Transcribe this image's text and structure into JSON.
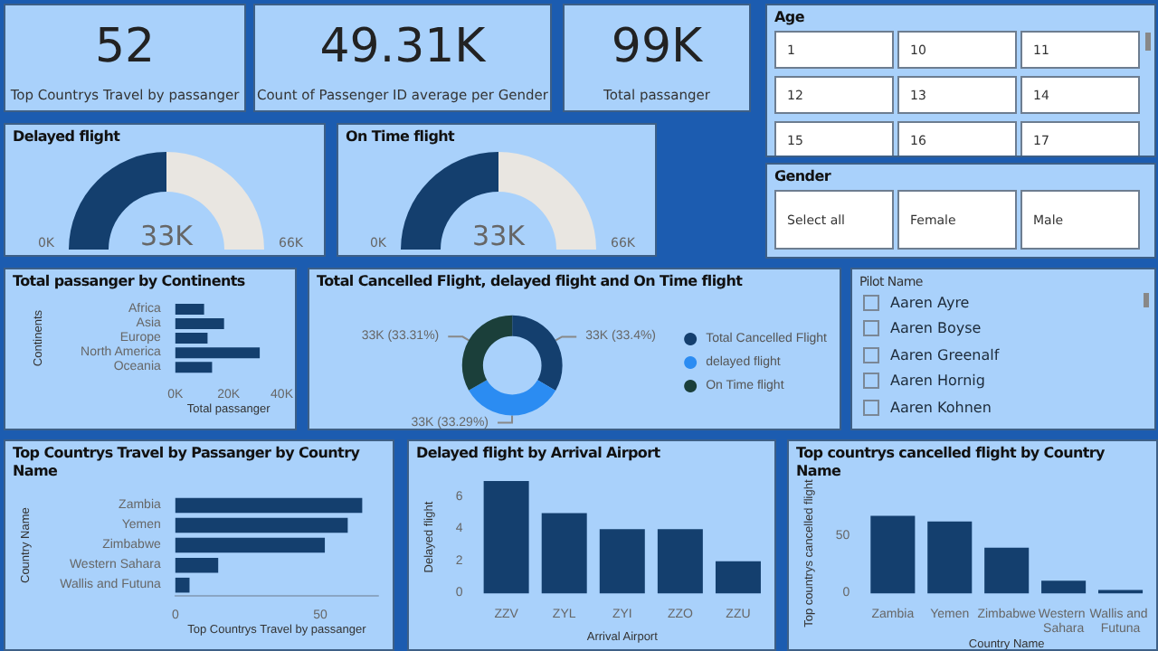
{
  "chart_data": [
    {
      "type": "other",
      "title": "Top Countrys Travel by passanger",
      "annotations": [
        "52"
      ]
    },
    {
      "type": "other",
      "title": "Count of Passenger ID average per Gender",
      "annotations": [
        "49.31K"
      ]
    },
    {
      "type": "other",
      "title": "Total passanger",
      "annotations": [
        "99K"
      ]
    },
    {
      "type": "other",
      "title": "Age",
      "annotations": [
        "1",
        "10",
        "11",
        "12",
        "13",
        "14",
        "15",
        "16",
        "17"
      ]
    },
    {
      "type": "donut",
      "title": "Delayed flight",
      "categories": [
        null,
        null
      ],
      "values": [
        50,
        50
      ],
      "colors": [
        "#143f6e",
        "#e9e6e1"
      ],
      "annotations": [
        "0K",
        "33K",
        "66K"
      ]
    },
    {
      "type": "donut",
      "title": "On Time flight",
      "categories": [
        null,
        null
      ],
      "values": [
        50,
        50
      ],
      "colors": [
        "#143f6e",
        "#e9e6e1"
      ],
      "annotations": [
        "0K",
        "33K",
        "66K"
      ]
    },
    {
      "type": "other",
      "title": "Gender",
      "annotations": [
        "Select all",
        "Female",
        "Male"
      ]
    },
    {
      "type": "bar",
      "orientation": "horizontal",
      "title": "Total passanger by Continents",
      "categories": [
        "Africa",
        "Asia",
        "Europe",
        "North America",
        "Oceania"
      ],
      "values": [
        10.8,
        18.3,
        12.1,
        31.7,
        13.8
      ],
      "color": "#143f6e",
      "xlim": [
        0,
        40
      ],
      "xticks": [
        {
          "value": 0,
          "label": "0K"
        },
        {
          "value": 20,
          "label": "20K"
        },
        {
          "value": 40,
          "label": "40K"
        }
      ],
      "xlabel": "Total passanger",
      "ylabel": "Continents"
    },
    {
      "type": "donut",
      "title": "Total Cancelled Flight, delayed flight and On Time flight",
      "categories": [
        "Total Cancelled Flight",
        "delayed flight",
        "On Time flight"
      ],
      "values": [
        33.4,
        33.29,
        33.31
      ],
      "colors": [
        "#143f6e",
        "#2b8cf2",
        "#1b3f3a"
      ],
      "value_labels": [
        "33K (33.4%)",
        "33K (33.29%)",
        "33K (33.31%)"
      ],
      "legend": "right"
    },
    {
      "type": "other",
      "title": "Pilot Name",
      "annotations": [
        "Aaren Ayre",
        "Aaren Boyse",
        "Aaren Greenalf",
        "Aaren Hornig",
        "Aaren Kohnen"
      ]
    },
    {
      "type": "bar",
      "orientation": "horizontal",
      "title": "Top Countrys Travel by Passanger by Country Name",
      "categories": [
        "Zambia",
        "Yemen",
        "Zimbabwe",
        "Western Sahara",
        "Wallis and Futuna"
      ],
      "values": [
        64.5,
        59.5,
        51.6,
        14.8,
        4.9
      ],
      "color": "#143f6e",
      "xlim": [
        0,
        70
      ],
      "xticks": [
        0,
        50
      ],
      "xlabel": "Top Countrys Travel by passanger",
      "ylabel": "Country Name"
    },
    {
      "type": "bar",
      "title": "Delayed flight by Arrival Airport",
      "categories": [
        "ZZV",
        "ZYL",
        "ZYI",
        "ZZO",
        "ZZU"
      ],
      "values": [
        7,
        5,
        4,
        4,
        2
      ],
      "color": "#143f6e",
      "ylim": [
        0,
        7
      ],
      "yticks": [
        0,
        2,
        4,
        6
      ],
      "xlabel": "Arrival Airport",
      "ylabel": "Delayed flight"
    },
    {
      "type": "bar",
      "title": "Top countrys cancelled flight by Country Name",
      "categories": [
        "Zambia",
        "Yemen",
        "Zimbabwe",
        "Western Sahara",
        "Wallis and Futuna"
      ],
      "values": [
        68,
        63,
        40,
        11,
        3
      ],
      "color": "#143f6e",
      "ylim": [
        0,
        70
      ],
      "yticks": [
        0,
        50
      ],
      "xlabel": "Country Name",
      "ylabel": "Top countrys cancelled flight"
    }
  ]
}
